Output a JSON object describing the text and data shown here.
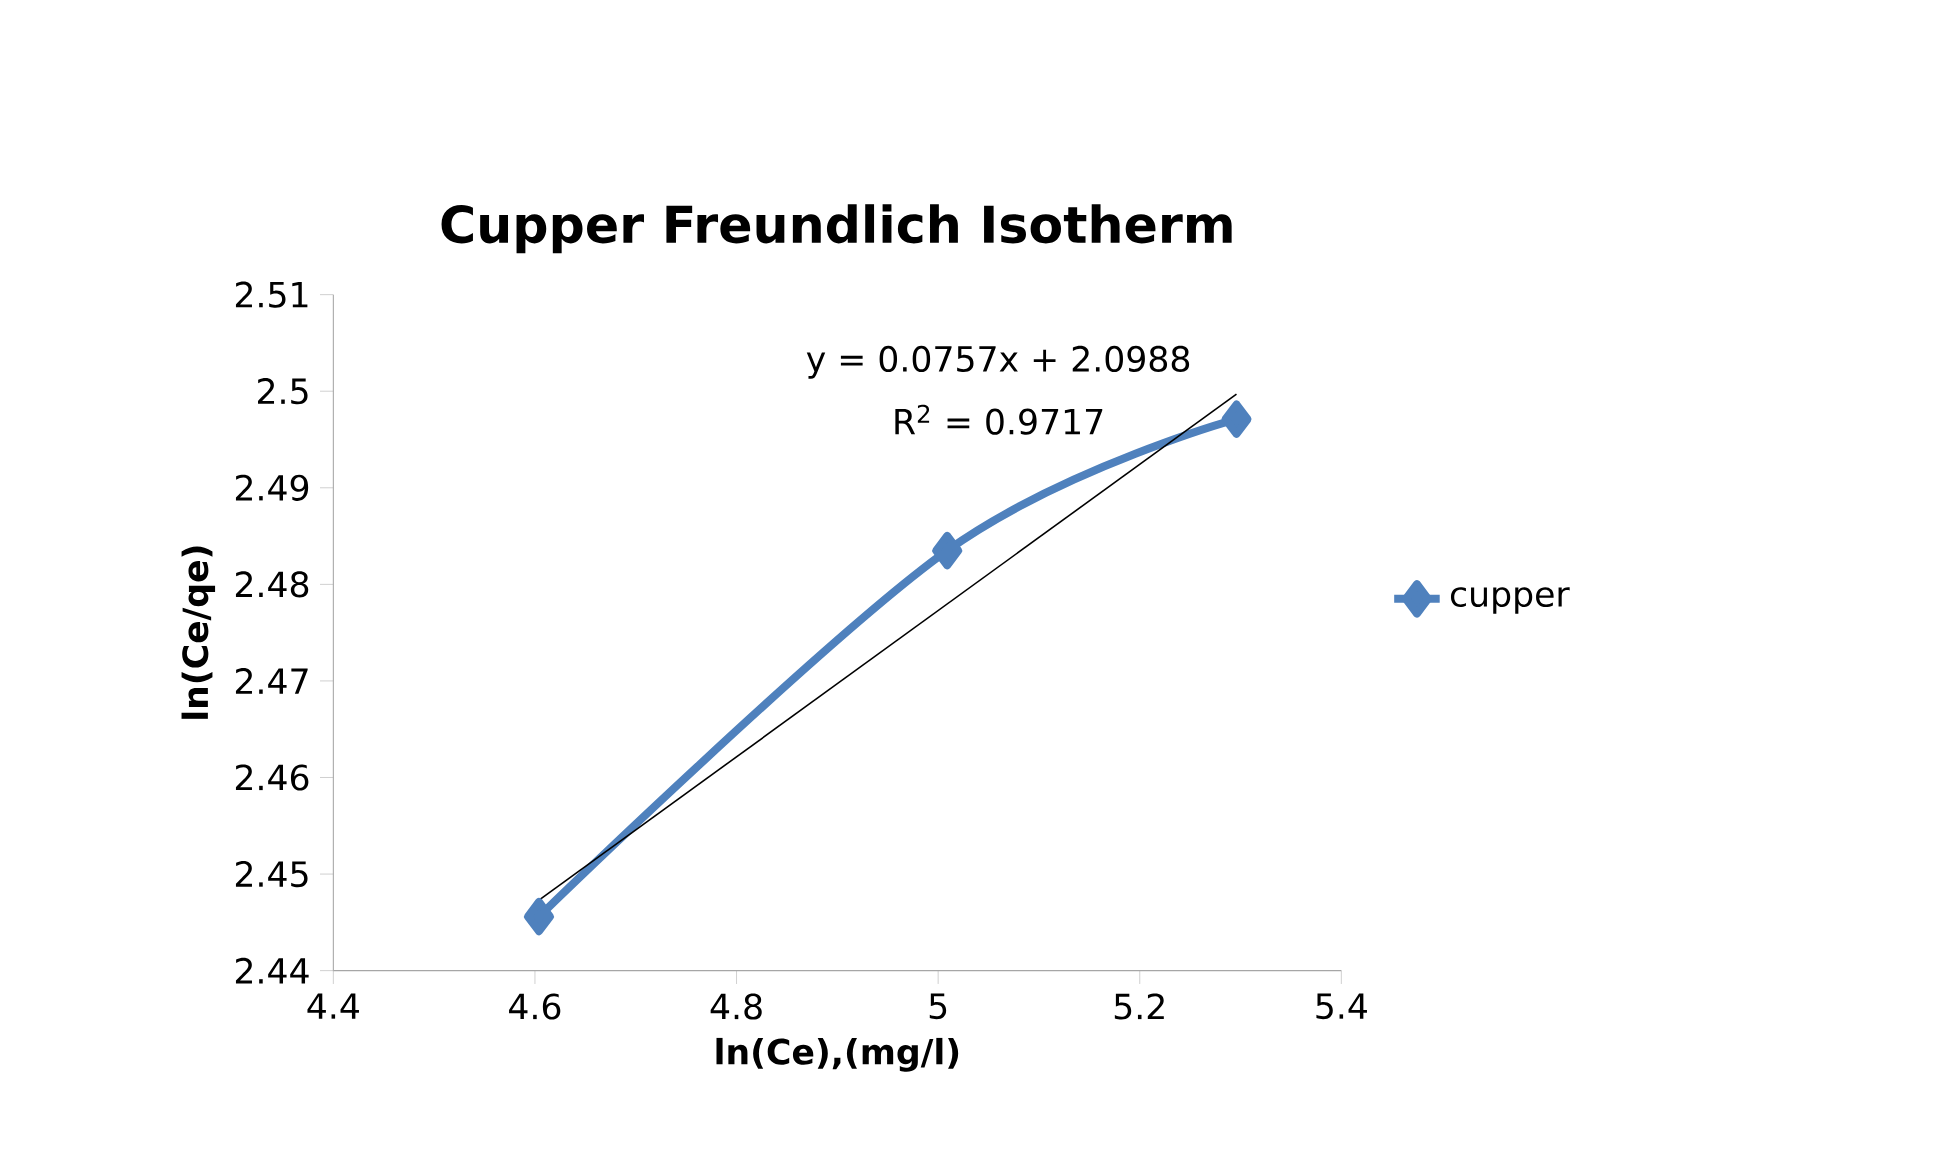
{
  "chart_data": {
    "type": "line",
    "title": "Cupper Freundlich Isotherm",
    "xlabel": "ln(Ce),(mg/l)",
    "ylabel": "ln(Ce/qe)",
    "series": [
      {
        "name": "cupper",
        "color": "#4f81bd",
        "x": [
          4.604,
          5.009,
          5.296
        ],
        "values": [
          2.4456,
          2.4835,
          2.4971
        ],
        "marker": "diamond"
      },
      {
        "type": "line",
        "color": "#000000",
        "x": [
          4.604,
          5.296
        ],
        "values": [
          2.4473,
          2.4997
        ],
        "marker": "none"
      }
    ],
    "annotations": [
      "y = 0.0757x + 2.0988",
      "R$^{2}$ = 0.9717"
    ],
    "xlim": [
      4.4,
      5.4
    ],
    "xticks": [
      4.4,
      4.6,
      4.8,
      5,
      5.2,
      5.4
    ],
    "ylim": [
      2.44,
      2.51
    ],
    "yticks": [
      2.44,
      2.45,
      2.46,
      2.47,
      2.48,
      2.49,
      2.5,
      2.51
    ],
    "grid": false,
    "legend": "right"
  }
}
